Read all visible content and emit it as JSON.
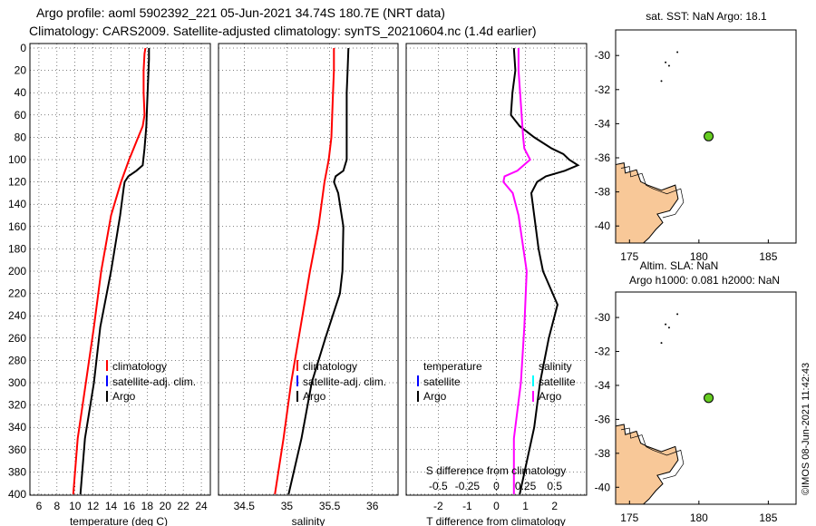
{
  "header": {
    "title_line1": "Argo profile: aoml 5902392_221 05-Jun-2021 34.74S 180.7E (NRT data)",
    "title_line2": "Climatology: CARS2009. Satellite-adjusted climatology: synTS_20210604.nc (1.4d earlier)"
  },
  "watermark": "©IMOS 08-Jun-2021 11:42:43",
  "colors": {
    "argo": "#000000",
    "climatology": "#ff0000",
    "satellite": "#0000ff",
    "salinity_diff": "#ff00ff",
    "salinity_sat": "#00ffff",
    "land": "#f8c898"
  },
  "chart_data": [
    {
      "type": "line",
      "name": "temperature",
      "xlabel": "temperature (deg C)",
      "ylabel": "",
      "xlim": [
        5,
        25
      ],
      "ylim": [
        400,
        0
      ],
      "xticks": [
        "6",
        "8",
        "10",
        "12",
        "14",
        "16",
        "18",
        "20",
        "22",
        "24"
      ],
      "yticks": [
        "0",
        "20",
        "40",
        "60",
        "80",
        "100",
        "120",
        "140",
        "160",
        "180",
        "200",
        "220",
        "240",
        "260",
        "280",
        "300",
        "320",
        "340",
        "360",
        "380",
        "400"
      ],
      "legend": [
        "climatology",
        "satellite-adj. clim.",
        "Argo"
      ],
      "series": [
        {
          "name": "Argo",
          "color": "#000000",
          "depth": [
            0,
            10,
            30,
            50,
            70,
            90,
            105,
            110,
            115,
            120,
            125,
            150,
            200,
            250,
            300,
            350,
            400
          ],
          "values": [
            18.2,
            18.2,
            18.1,
            18.0,
            17.9,
            17.7,
            17.5,
            16.8,
            15.9,
            15.5,
            15.4,
            15.0,
            14.0,
            12.8,
            12.1,
            11.1,
            10.6
          ]
        },
        {
          "name": "climatology",
          "color": "#ff0000",
          "depth": [
            0,
            5,
            20,
            40,
            50,
            60,
            70,
            80,
            90,
            100,
            120,
            150,
            200,
            250,
            300,
            350,
            400
          ],
          "values": [
            17.8,
            17.7,
            17.6,
            17.6,
            17.65,
            17.7,
            17.5,
            17.0,
            16.5,
            16.0,
            15.1,
            14.0,
            12.9,
            12.1,
            11.2,
            10.3,
            9.8
          ]
        }
      ]
    },
    {
      "type": "line",
      "name": "salinity",
      "xlabel": "salinity",
      "xlim": [
        34.2,
        36.3
      ],
      "ylim": [
        400,
        0
      ],
      "xticks": [
        "34.5",
        "35",
        "35.5",
        "36"
      ],
      "legend": [
        "climatology",
        "satellite-adj. clim.",
        "Argo"
      ],
      "series": [
        {
          "name": "Argo",
          "color": "#000000",
          "depth": [
            0,
            20,
            40,
            60,
            80,
            100,
            110,
            115,
            120,
            130,
            160,
            200,
            220,
            260,
            300,
            350,
            380,
            400
          ],
          "values": [
            35.72,
            35.71,
            35.7,
            35.7,
            35.7,
            35.7,
            35.66,
            35.57,
            35.55,
            35.6,
            35.66,
            35.65,
            35.62,
            35.45,
            35.29,
            35.17,
            35.08,
            35.02
          ]
        },
        {
          "name": "climatology",
          "color": "#ff0000",
          "depth": [
            0,
            20,
            40,
            80,
            100,
            120,
            160,
            200,
            250,
            300,
            350,
            400
          ],
          "values": [
            35.55,
            35.55,
            35.54,
            35.52,
            35.49,
            35.44,
            35.37,
            35.27,
            35.16,
            35.05,
            34.96,
            34.86
          ]
        }
      ]
    },
    {
      "type": "line",
      "name": "difference",
      "xlabel": "T difference from climatology",
      "title_inner": "S difference from climatology",
      "xlim": [
        -3.1,
        3.1
      ],
      "ylim": [
        400,
        0
      ],
      "xticks": [
        "-2",
        "-1",
        "0",
        "1",
        "2"
      ],
      "xticks_top": [
        "-0.5",
        "-0.25",
        "0",
        "0.25",
        "0.5"
      ],
      "legend_left_title": "temperature",
      "legend_right_title": "salinity",
      "legend_left": [
        "satellite",
        "Argo"
      ],
      "legend_right": [
        "satellite",
        "Argo"
      ],
      "series": [
        {
          "name": "T Argo",
          "color": "#000000",
          "depth": [
            0,
            20,
            40,
            60,
            70,
            80,
            90,
            95,
            100,
            105,
            110,
            115,
            120,
            130,
            150,
            180,
            200,
            230,
            260,
            300,
            340,
            400
          ],
          "values": [
            0.6,
            0.65,
            0.55,
            0.5,
            0.8,
            1.3,
            1.9,
            2.3,
            2.5,
            2.8,
            2.35,
            1.7,
            1.4,
            1.2,
            1.3,
            1.45,
            1.6,
            2.1,
            1.8,
            1.5,
            1.3,
            0.8
          ]
        },
        {
          "name": "S Argo",
          "color": "#ff00ff",
          "depth": [
            0,
            20,
            50,
            80,
            90,
            100,
            110,
            115,
            120,
            130,
            150,
            200,
            250,
            300,
            350,
            400
          ],
          "values": [
            0.19,
            0.19,
            0.21,
            0.23,
            0.24,
            0.29,
            0.18,
            0.07,
            0.06,
            0.14,
            0.19,
            0.26,
            0.24,
            0.21,
            0.15,
            0.15
          ]
        }
      ]
    }
  ],
  "maps": [
    {
      "title": "sat. SST: NaN Argo: 18.1",
      "xticks": [
        "175",
        "180",
        "185"
      ],
      "yticks": [
        "-30",
        "-32",
        "-34",
        "-36",
        "-38",
        "-40"
      ],
      "xlim": [
        174,
        187
      ],
      "ylim": [
        -41,
        -28.5
      ],
      "marker": {
        "lon": 180.7,
        "lat": -34.74,
        "color": "#66cc22"
      }
    },
    {
      "title_line1": "Altim. SLA: NaN",
      "title_line2": "Argo h1000: 0.081 h2000: NaN",
      "xticks": [
        "175",
        "180",
        "185"
      ],
      "yticks": [
        "-30",
        "-32",
        "-34",
        "-36",
        "-38",
        "-40"
      ],
      "xlim": [
        174,
        187
      ],
      "ylim": [
        -41,
        -28.5
      ],
      "marker": {
        "lon": 180.7,
        "lat": -34.74,
        "color": "#66cc22"
      }
    }
  ]
}
